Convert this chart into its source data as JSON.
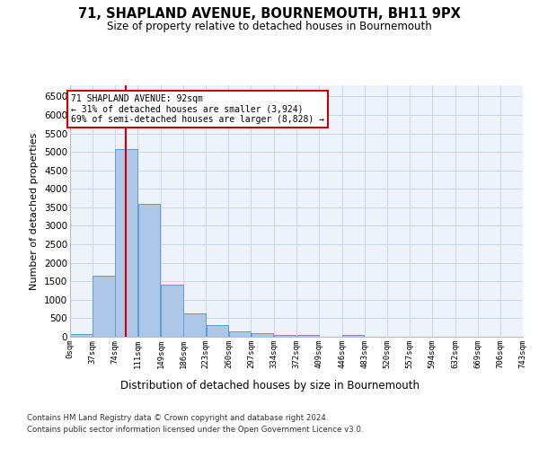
{
  "title": "71, SHAPLAND AVENUE, BOURNEMOUTH, BH11 9PX",
  "subtitle": "Size of property relative to detached houses in Bournemouth",
  "xlabel": "Distribution of detached houses by size in Bournemouth",
  "ylabel": "Number of detached properties",
  "footer_line1": "Contains HM Land Registry data © Crown copyright and database right 2024.",
  "footer_line2": "Contains public sector information licensed under the Open Government Licence v3.0.",
  "bar_color": "#aec6e8",
  "bar_edge_color": "#5a9fd4",
  "grid_color": "#c8d8ec",
  "background_color": "#eef2fa",
  "annotation_box_color": "#cc0000",
  "property_line_color": "#cc0000",
  "property_size": 92,
  "annotation_title": "71 SHAPLAND AVENUE: 92sqm",
  "annotation_line1": "← 31% of detached houses are smaller (3,924)",
  "annotation_line2": "69% of semi-detached houses are larger (8,828) →",
  "bin_labels": [
    "0sqm",
    "37sqm",
    "74sqm",
    "111sqm",
    "149sqm",
    "186sqm",
    "223sqm",
    "260sqm",
    "297sqm",
    "334sqm",
    "372sqm",
    "409sqm",
    "446sqm",
    "483sqm",
    "520sqm",
    "557sqm",
    "594sqm",
    "632sqm",
    "669sqm",
    "706sqm",
    "743sqm"
  ],
  "bin_edges": [
    0,
    37,
    74,
    111,
    149,
    186,
    223,
    260,
    297,
    334,
    372,
    409,
    446,
    483,
    520,
    557,
    594,
    632,
    669,
    706,
    743
  ],
  "bar_heights": [
    70,
    1640,
    5080,
    3600,
    1420,
    630,
    310,
    155,
    95,
    60,
    50,
    0,
    50,
    0,
    0,
    0,
    0,
    0,
    0,
    0
  ],
  "ylim": [
    0,
    6800
  ],
  "yticks": [
    0,
    500,
    1000,
    1500,
    2000,
    2500,
    3000,
    3500,
    4000,
    4500,
    5000,
    5500,
    6000,
    6500
  ]
}
